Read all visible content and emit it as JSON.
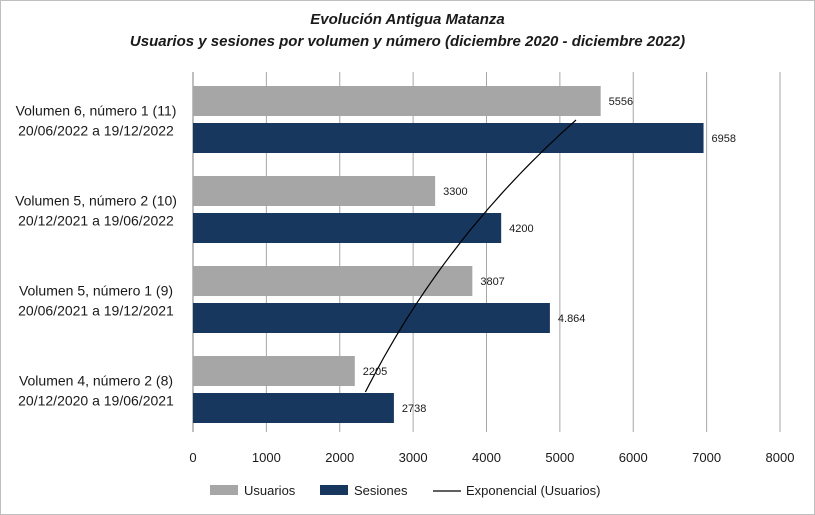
{
  "chart_data": {
    "type": "bar",
    "orientation": "horizontal",
    "title": "Evolución Antigua Matanza",
    "subtitle": "Usuarios y sesiones por volumen y número (diciembre 2020 - diciembre 2022)",
    "categories": [
      {
        "line1": "Volumen 6, número 1 (11)",
        "line2": "20/06/2022 a 19/12/2022"
      },
      {
        "line1": "Volumen 5, número 2 (10)",
        "line2": "20/12/2021 a 19/06/2022"
      },
      {
        "line1": "Volumen 5, número 1 (9)",
        "line2": "20/06/2021 a 19/12/2021"
      },
      {
        "line1": "Volumen 4, número 2 (8)",
        "line2": "20/12/2020 a 19/06/2021"
      }
    ],
    "series": [
      {
        "name": "Usuarios",
        "color": "#a6a6a6",
        "values": [
          5556,
          3300,
          3807,
          2205
        ],
        "labels": [
          "5556",
          "3300",
          "3807",
          "2205"
        ]
      },
      {
        "name": "Sesiones",
        "color": "#17375e",
        "values": [
          6958,
          4200,
          4864,
          2738
        ],
        "labels": [
          "6958",
          "4200",
          "4.864",
          "2738"
        ]
      }
    ],
    "trendline": {
      "name": "Exponencial (Usuarios)",
      "type": "exponential",
      "color": "#000000",
      "from": 2350,
      "to": 5220
    },
    "xlim": [
      0,
      8000
    ],
    "xticks": [
      "0",
      "1000",
      "2000",
      "3000",
      "4000",
      "5000",
      "6000",
      "7000",
      "8000"
    ],
    "grid": true,
    "legend": "bottom"
  }
}
